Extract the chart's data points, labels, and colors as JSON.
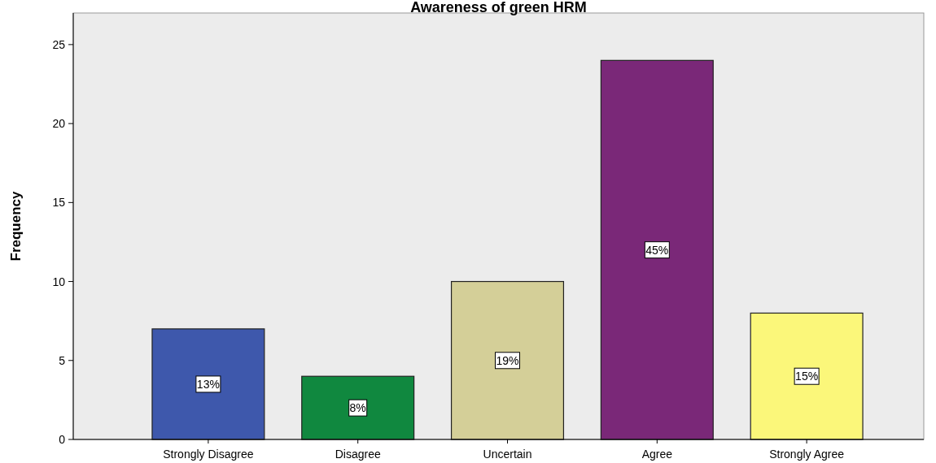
{
  "chart_data": {
    "type": "bar",
    "title": "Awareness of green HRM",
    "ylabel": "Frequency",
    "categories": [
      "Strongly Disagree",
      "Disagree",
      "Uncertain",
      "Agree",
      "Strongly Agree"
    ],
    "values": [
      7,
      4,
      10,
      24,
      8
    ],
    "colors": [
      "#3e58ac",
      "#10883f",
      "#d4cf98",
      "#7a2878",
      "#fbf77a"
    ],
    "annotations": [
      {
        "text": "13%",
        "x": "Strongly Disagree",
        "y": 3.5
      },
      {
        "text": "8%",
        "x": "Disagree",
        "y": 2
      },
      {
        "text": "19%",
        "x": "Uncertain",
        "y": 5
      },
      {
        "text": "45%",
        "x": "Agree",
        "y": 12
      },
      {
        "text": "15%",
        "x": "Strongly Agree",
        "y": 4
      }
    ],
    "ylim": [
      0,
      27
    ],
    "yticks": [
      0,
      5,
      10,
      15,
      20,
      25
    ]
  }
}
